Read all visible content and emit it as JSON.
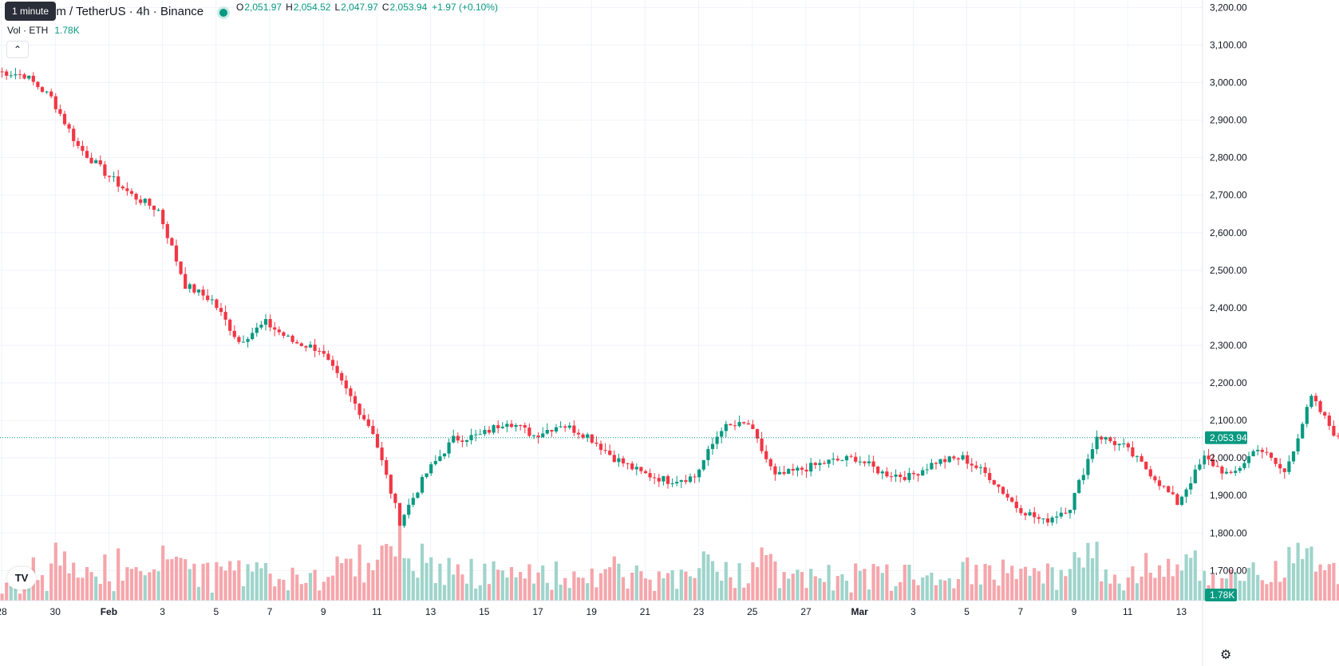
{
  "legend": {
    "symbol": "um / TetherUS · 4h · Binance",
    "open_label": "O",
    "open": "2,051.97",
    "high_label": "H",
    "high": "2,054.52",
    "low_label": "L",
    "low": "2,047.97",
    "close_label": "C",
    "close": "2,053.94",
    "change": "+1.97 (+0.10%)",
    "volume_label": "Vol · ETH",
    "volume": "1.78K"
  },
  "tooltip": "1 minute",
  "collapse_icon": "chevron-up-icon",
  "logo_icon": "tradingview-logo-icon",
  "logo_text": "TV",
  "settings_icon": "gear-icon",
  "colors": {
    "up": "#089981",
    "down": "#f23645",
    "up_vol": "#9fd4cb",
    "down_vol": "#f5a6ab",
    "last_price": "#089981"
  },
  "chart_data": {
    "type": "candlestick",
    "y_axis": {
      "ylim": [
        1620,
        3220
      ],
      "ticks": [
        1700,
        1800,
        1900,
        2000,
        2100,
        2200,
        2300,
        2400,
        2500,
        2600,
        2700,
        2800,
        2900,
        3000,
        3100,
        3200
      ],
      "tick_labels": [
        "1,700.00",
        "1,800.00",
        "1,900.00",
        "2,000.00",
        "2,100.00",
        "2,200.00",
        "2,300.00",
        "2,400.00",
        "2,500.00",
        "2,600.00",
        "2,700.00",
        "2,800.00",
        "2,900.00",
        "3,000.00",
        "3,100.00",
        "3,200.00"
      ]
    },
    "x_axis": {
      "tick_labels": [
        "28",
        "30",
        "Feb",
        "3",
        "5",
        "7",
        "9",
        "11",
        "13",
        "15",
        "17",
        "19",
        "21",
        "23",
        "25",
        "27",
        "Mar",
        "3",
        "5",
        "7",
        "9",
        "11",
        "13"
      ],
      "tick_day_index": [
        0,
        2,
        4,
        6,
        8,
        10,
        12,
        14,
        16,
        18,
        20,
        22,
        24,
        26,
        28,
        30,
        32,
        34,
        36,
        38,
        40,
        42,
        44
      ]
    },
    "last_price": 2053.94,
    "last_price_label": "2,053.94",
    "volume_label": "1.78K",
    "waypoints": [
      [
        0,
        3030
      ],
      [
        1,
        3020
      ],
      [
        2,
        2960
      ],
      [
        3,
        2830
      ],
      [
        4,
        2760
      ],
      [
        5,
        2700
      ],
      [
        6,
        2660
      ],
      [
        7,
        2460
      ],
      [
        8,
        2420
      ],
      [
        9,
        2310
      ],
      [
        10,
        2360
      ],
      [
        11,
        2310
      ],
      [
        12,
        2290
      ],
      [
        13,
        2180
      ],
      [
        14,
        2070
      ],
      [
        15,
        1830
      ],
      [
        16,
        1960
      ],
      [
        17,
        2050
      ],
      [
        18,
        2060
      ],
      [
        19,
        2100
      ],
      [
        20,
        2060
      ],
      [
        21,
        2090
      ],
      [
        22,
        2060
      ],
      [
        23,
        2000
      ],
      [
        24,
        1960
      ],
      [
        25,
        1940
      ],
      [
        26,
        1950
      ],
      [
        27,
        2080
      ],
      [
        28,
        2090
      ],
      [
        29,
        1950
      ],
      [
        30,
        1970
      ],
      [
        31,
        1990
      ],
      [
        32,
        2000
      ],
      [
        33,
        1960
      ],
      [
        34,
        1950
      ],
      [
        35,
        1990
      ],
      [
        36,
        2000
      ],
      [
        37,
        1950
      ],
      [
        38,
        1870
      ],
      [
        39,
        1830
      ],
      [
        40,
        1870
      ],
      [
        41,
        2060
      ],
      [
        42,
        2030
      ],
      [
        43,
        1960
      ],
      [
        44,
        1880
      ],
      [
        45,
        2000
      ],
      [
        46,
        1950
      ],
      [
        47,
        2030
      ],
      [
        48,
        1960
      ],
      [
        49,
        2160
      ],
      [
        50,
        2050
      ],
      [
        51,
        1980
      ],
      [
        52,
        1950
      ],
      [
        53,
        1930
      ],
      [
        54,
        2000
      ],
      [
        55,
        2050
      ],
      [
        56,
        2030
      ],
      [
        57,
        2054
      ]
    ]
  }
}
